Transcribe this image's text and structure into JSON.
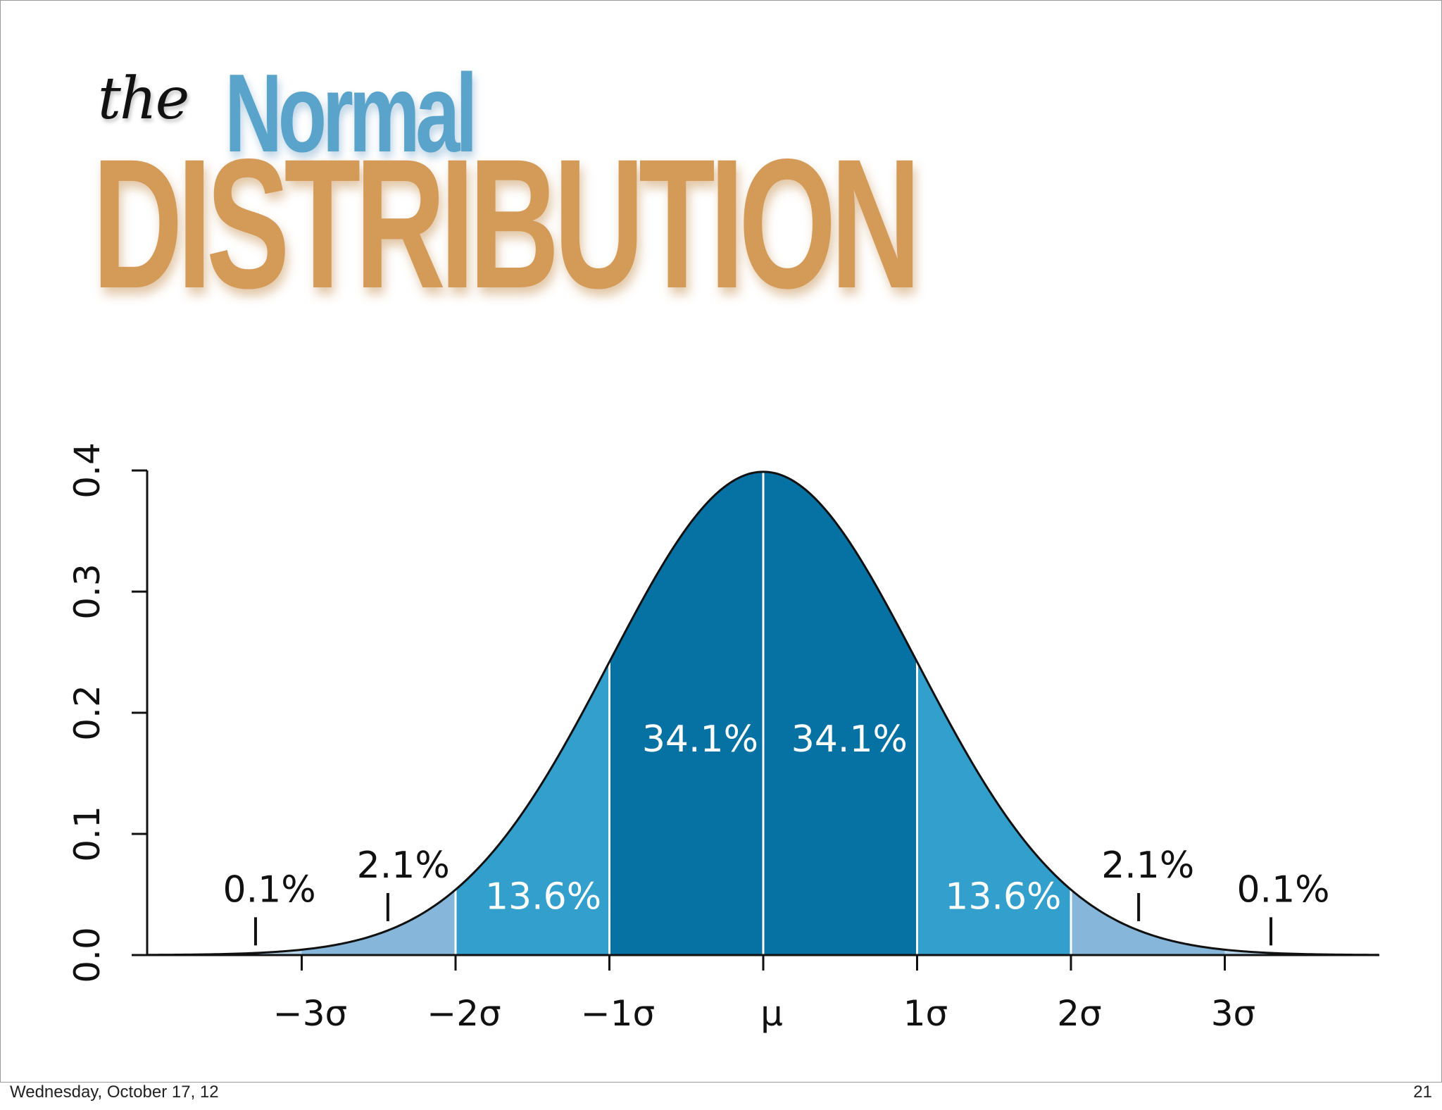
{
  "title": {
    "the": "the",
    "normal": "Normal",
    "distribution": "DISTRIBUTION"
  },
  "footer": {
    "date": "Wednesday, October 17, 12",
    "page": "21"
  },
  "colors": {
    "dark_band": "#0671a3",
    "mid_band": "#339fcd",
    "light_band": "#86b7da",
    "tail_band": "#b9d7ec",
    "curve": "#111111",
    "normal_title": "#5aa4cc",
    "distribution_title": "#d49a58"
  },
  "chart_data": {
    "type": "area",
    "title": "",
    "xlabel": "",
    "ylabel": "",
    "xlim": [
      -4,
      4
    ],
    "ylim": [
      0,
      0.4
    ],
    "yticks": [
      0.0,
      0.1,
      0.2,
      0.3,
      0.4
    ],
    "ytick_labels": [
      "0.0",
      "0.1",
      "0.2",
      "0.3",
      "0.4"
    ],
    "xticks": [
      -3,
      -2,
      -1,
      0,
      1,
      2,
      3
    ],
    "xtick_labels": [
      "−3σ",
      "−2σ",
      "−1σ",
      "μ",
      "1σ",
      "2σ",
      "3σ"
    ],
    "grid": false,
    "legend": "none",
    "curve": "standard normal density",
    "bands": [
      {
        "from": -4,
        "to": -3,
        "label": "0.1%",
        "tone": "tail"
      },
      {
        "from": -3,
        "to": -2,
        "label": "2.1%",
        "tone": "light"
      },
      {
        "from": -2,
        "to": -1,
        "label": "13.6%",
        "tone": "mid"
      },
      {
        "from": -1,
        "to": 0,
        "label": "34.1%",
        "tone": "dark"
      },
      {
        "from": 0,
        "to": 1,
        "label": "34.1%",
        "tone": "dark"
      },
      {
        "from": 1,
        "to": 2,
        "label": "13.6%",
        "tone": "mid"
      },
      {
        "from": 2,
        "to": 3,
        "label": "2.1%",
        "tone": "light"
      },
      {
        "from": 3,
        "to": 4,
        "label": "0.1%",
        "tone": "tail"
      }
    ]
  }
}
